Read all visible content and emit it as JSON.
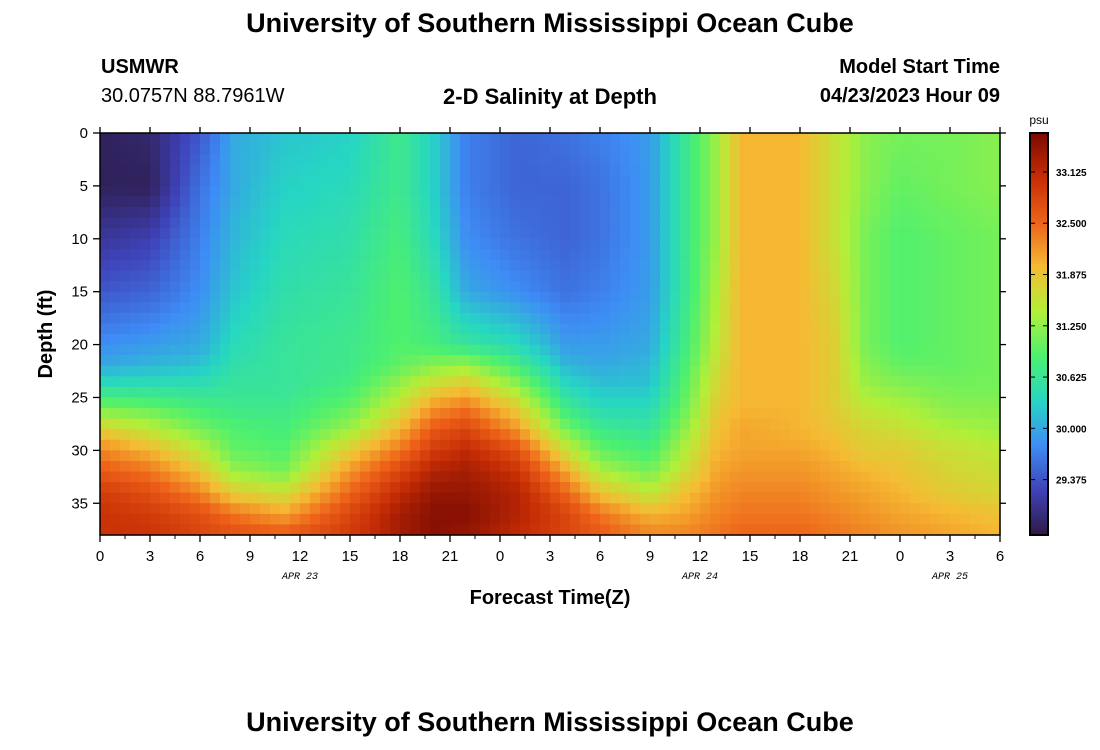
{
  "header": {
    "title": "University of Southern Mississippi Ocean Cube",
    "station_id": "USMWR",
    "coordinates": "30.0757N  88.7961W",
    "plot_title": "2-D Salinity at Depth",
    "start_label": "Model Start Time",
    "start_value": "04/23/2023 Hour 09"
  },
  "footer": {
    "title": "University of Southern Mississippi Ocean Cube"
  },
  "chart_data": {
    "type": "heatmap",
    "title": "2-D Salinity at Depth",
    "xlabel": "Forecast Time(Z)",
    "ylabel": "Depth (ft)",
    "x_range_hours": [
      0,
      54
    ],
    "x_ticks": [
      "0",
      "3",
      "6",
      "9",
      "12",
      "15",
      "18",
      "21",
      "0",
      "3",
      "6",
      "9",
      "12",
      "15",
      "18",
      "21",
      "0",
      "3",
      "6"
    ],
    "date_labels": [
      {
        "text": "APR 23",
        "hour": 12
      },
      {
        "text": "APR 24",
        "hour": 36
      },
      {
        "text": "APR 25",
        "hour": 51
      }
    ],
    "y_range_ft": [
      0,
      38
    ],
    "y_ticks": [
      0,
      5,
      10,
      15,
      20,
      25,
      30,
      35
    ],
    "colorbar": {
      "units": "psu",
      "range": [
        28.7,
        33.6
      ],
      "tick_values": [
        29.375,
        30.0,
        30.625,
        31.25,
        31.875,
        32.5,
        33.125
      ],
      "tick_labels": [
        "29.375",
        "30.000",
        "30.625",
        "31.250",
        "31.875",
        "32.500",
        "33.125"
      ],
      "colors": [
        "#2d1a45",
        "#3f42b8",
        "#3e8cf5",
        "#26d6c3",
        "#4cf070",
        "#b2ef38",
        "#f5bb33",
        "#ee6219",
        "#c62d05",
        "#7a0a02"
      ]
    },
    "profiles": {
      "depth_ft": [
        0,
        5,
        10,
        15,
        20,
        22,
        24,
        26,
        28,
        30,
        32,
        34,
        36,
        38
      ],
      "columns": [
        {
          "hour": 0,
          "psu": [
            28.8,
            28.8,
            29.1,
            29.4,
            29.8,
            30.0,
            30.5,
            31.1,
            31.8,
            32.3,
            32.6,
            32.9,
            33.0,
            33.0
          ]
        },
        {
          "hour": 3,
          "psu": [
            28.9,
            28.8,
            29.2,
            29.5,
            29.9,
            30.1,
            30.5,
            31.0,
            31.5,
            32.0,
            32.4,
            32.7,
            32.9,
            33.0
          ]
        },
        {
          "hour": 6,
          "psu": [
            29.4,
            29.6,
            29.7,
            29.8,
            30.0,
            30.2,
            30.5,
            30.8,
            31.1,
            31.5,
            31.9,
            32.3,
            32.7,
            32.8
          ]
        },
        {
          "hour": 8,
          "psu": [
            30.0,
            30.0,
            30.1,
            30.2,
            30.4,
            30.5,
            30.6,
            30.7,
            30.9,
            31.0,
            31.3,
            31.8,
            32.4,
            32.7
          ]
        },
        {
          "hour": 11,
          "psu": [
            30.2,
            30.3,
            30.4,
            30.5,
            30.6,
            30.6,
            30.6,
            30.7,
            30.8,
            30.9,
            31.1,
            31.6,
            32.1,
            32.6
          ]
        },
        {
          "hour": 15,
          "psu": [
            30.3,
            30.4,
            30.5,
            30.6,
            30.7,
            30.7,
            30.8,
            31.0,
            31.3,
            31.8,
            32.2,
            32.5,
            32.8,
            32.9
          ]
        },
        {
          "hour": 18,
          "psu": [
            30.7,
            30.7,
            30.8,
            30.9,
            30.9,
            31.0,
            31.3,
            31.6,
            32.0,
            32.4,
            32.8,
            33.1,
            33.3,
            33.3
          ]
        },
        {
          "hour": 20,
          "psu": [
            30.3,
            30.3,
            30.4,
            30.6,
            30.8,
            31.2,
            31.7,
            32.2,
            32.6,
            32.9,
            33.2,
            33.4,
            33.5,
            33.5
          ]
        },
        {
          "hour": 22,
          "psu": [
            29.7,
            29.7,
            29.8,
            30.0,
            30.6,
            31.3,
            31.9,
            32.4,
            32.8,
            33.1,
            33.3,
            33.4,
            33.5,
            33.4
          ]
        },
        {
          "hour": 25,
          "psu": [
            29.5,
            29.5,
            29.6,
            29.8,
            30.4,
            30.8,
            31.3,
            31.8,
            32.2,
            32.7,
            33.0,
            33.2,
            33.2,
            33.1
          ]
        },
        {
          "hour": 28,
          "psu": [
            29.6,
            29.5,
            29.5,
            29.6,
            29.9,
            30.1,
            30.4,
            30.7,
            31.1,
            31.6,
            32.1,
            32.5,
            32.8,
            32.8
          ]
        },
        {
          "hour": 30,
          "psu": [
            29.7,
            29.6,
            29.6,
            29.7,
            29.9,
            30.0,
            30.2,
            30.4,
            30.7,
            31.0,
            31.4,
            31.9,
            32.4,
            32.6
          ]
        },
        {
          "hour": 33,
          "psu": [
            29.9,
            29.9,
            29.9,
            29.9,
            30.0,
            30.1,
            30.2,
            30.4,
            30.6,
            30.8,
            31.1,
            31.5,
            32.0,
            32.3
          ]
        },
        {
          "hour": 35,
          "psu": [
            30.6,
            30.6,
            30.6,
            30.6,
            30.7,
            30.8,
            30.9,
            31.0,
            31.2,
            31.4,
            31.6,
            31.9,
            32.1,
            32.3
          ]
        },
        {
          "hour": 37,
          "psu": [
            31.3,
            31.3,
            31.3,
            31.4,
            31.5,
            31.6,
            31.7,
            31.8,
            31.9,
            32.0,
            32.1,
            32.2,
            32.3,
            32.4
          ]
        },
        {
          "hour": 38.5,
          "psu": [
            32.0,
            32.0,
            32.0,
            32.0,
            32.0,
            32.0,
            32.0,
            32.0,
            32.1,
            32.1,
            32.2,
            32.3,
            32.4,
            32.5
          ]
        },
        {
          "hour": 42,
          "psu": [
            32.0,
            32.0,
            32.0,
            32.0,
            32.0,
            32.0,
            32.0,
            32.0,
            32.0,
            32.1,
            32.2,
            32.3,
            32.4,
            32.5
          ]
        },
        {
          "hour": 44,
          "psu": [
            31.6,
            31.6,
            31.6,
            31.7,
            31.8,
            31.8,
            31.8,
            31.8,
            31.9,
            32.0,
            32.1,
            32.2,
            32.3,
            32.4
          ]
        },
        {
          "hour": 46,
          "psu": [
            31.2,
            31.2,
            31.1,
            31.1,
            31.1,
            31.2,
            31.3,
            31.5,
            31.7,
            31.8,
            32.0,
            32.1,
            32.2,
            32.3
          ]
        },
        {
          "hour": 48,
          "psu": [
            31.1,
            31.0,
            30.9,
            30.9,
            30.9,
            31.0,
            31.2,
            31.4,
            31.6,
            31.8,
            31.9,
            32.0,
            32.1,
            32.2
          ]
        },
        {
          "hour": 51,
          "psu": [
            31.1,
            31.1,
            31.0,
            31.0,
            31.0,
            31.0,
            31.1,
            31.2,
            31.4,
            31.6,
            31.7,
            31.8,
            32.0,
            32.1
          ]
        },
        {
          "hour": 54,
          "psu": [
            31.2,
            31.2,
            31.1,
            31.1,
            31.1,
            31.1,
            31.1,
            31.2,
            31.3,
            31.5,
            31.6,
            31.7,
            31.9,
            32.0
          ]
        }
      ]
    }
  }
}
